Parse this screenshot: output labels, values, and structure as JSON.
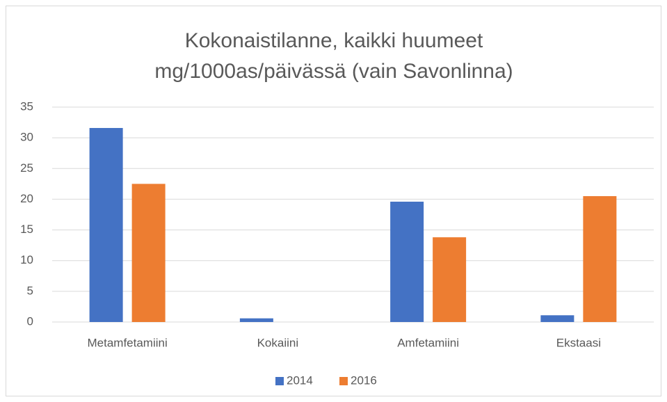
{
  "chart_data": {
    "type": "bar",
    "title": [
      "Kokonaistilanne, kaikki huumeet",
      "mg/1000as/päivässä (vain Savonlinna)"
    ],
    "categories": [
      "Metamfetamiini",
      "Kokaiini",
      "Amfetamiini",
      "Ekstaasi"
    ],
    "series": [
      {
        "name": "2014",
        "color": "#4472c4",
        "values": [
          31.6,
          0.6,
          19.6,
          1.1
        ]
      },
      {
        "name": "2016",
        "color": "#ed7d31",
        "values": [
          22.5,
          0,
          13.8,
          20.5
        ]
      }
    ],
    "ylim": [
      0,
      35
    ],
    "yticks": [
      0,
      5,
      10,
      15,
      20,
      25,
      30,
      35
    ],
    "grid": true,
    "legend": "bottom"
  }
}
